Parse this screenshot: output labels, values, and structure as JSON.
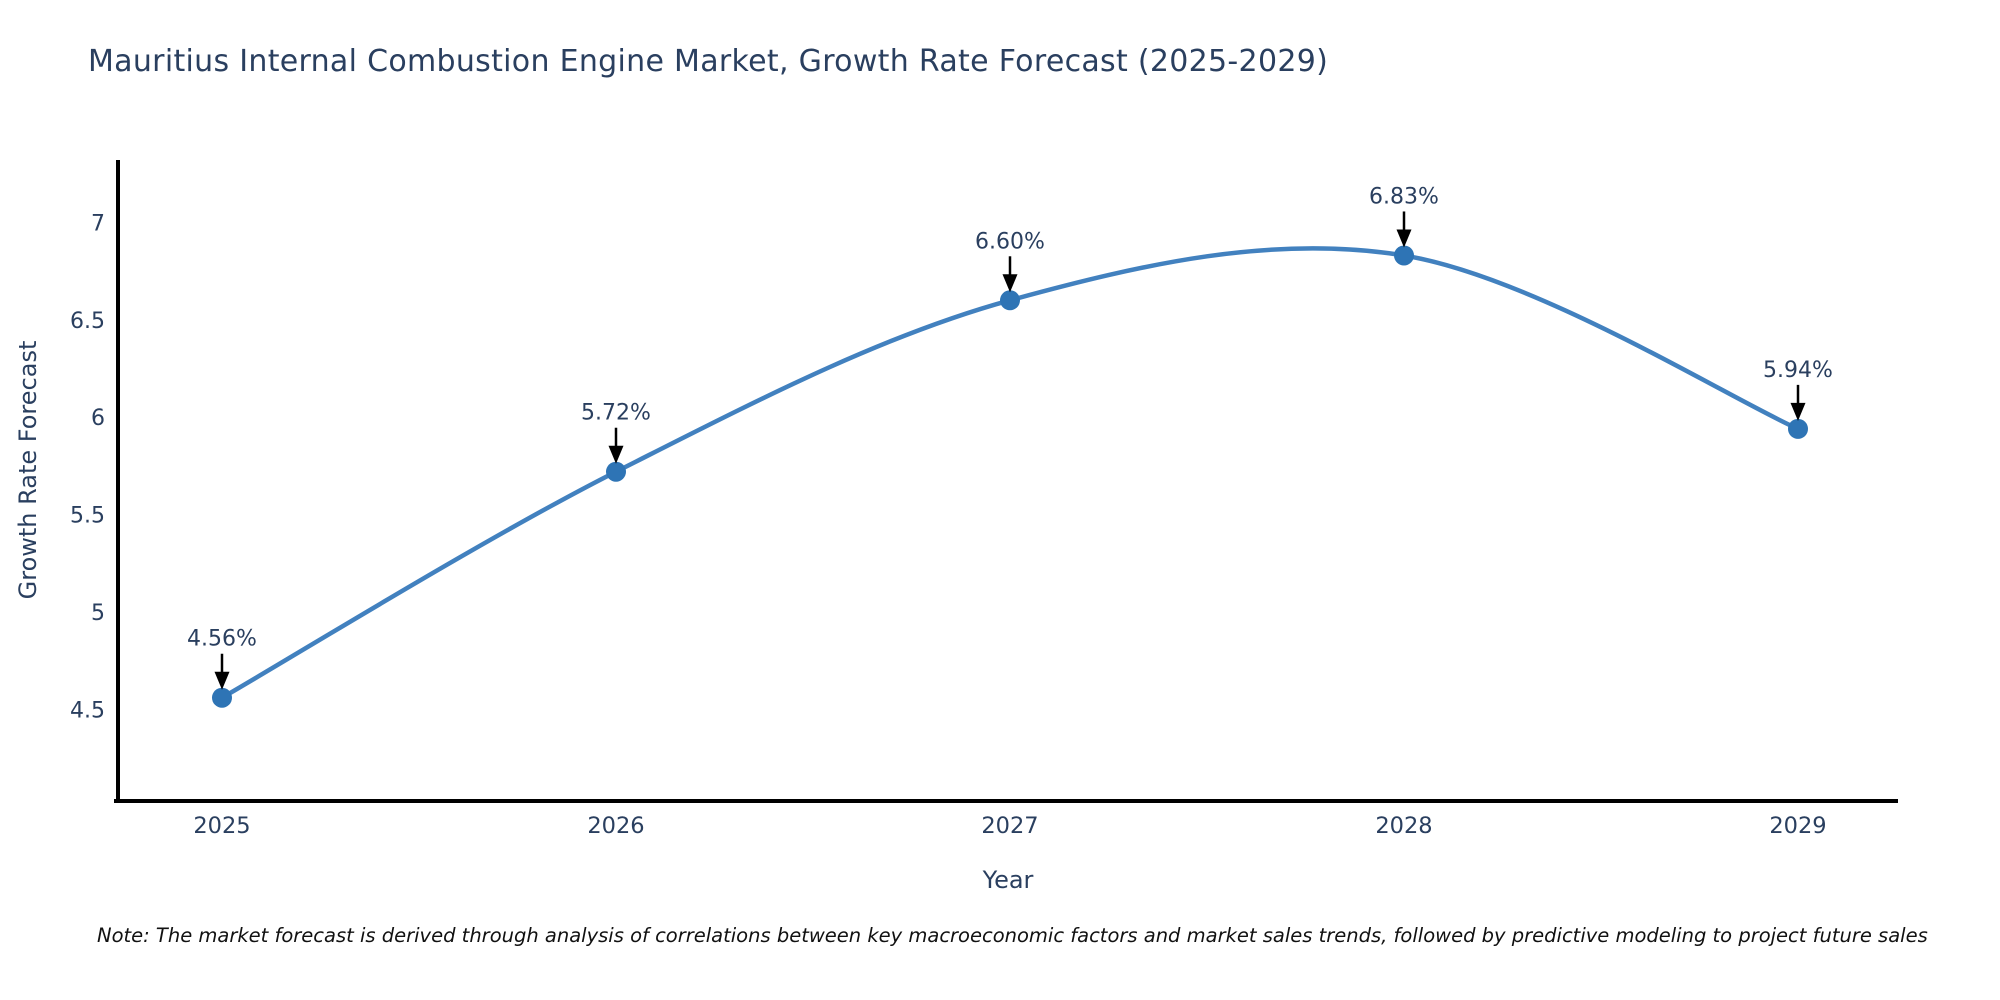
{
  "chart_data": {
    "type": "line",
    "title": "Mauritius Internal Combustion Engine Market, Growth Rate Forecast (2025-2029)",
    "xlabel": "Year",
    "ylabel": "Growth Rate Forecast",
    "categories": [
      "2025",
      "2026",
      "2027",
      "2028",
      "2029"
    ],
    "values": [
      4.56,
      5.72,
      6.6,
      6.83,
      5.94
    ],
    "point_labels": [
      "4.56%",
      "5.72%",
      "6.60%",
      "6.83%",
      "5.94%"
    ],
    "series_name": "Growth Rate Forecast",
    "yticks": [
      4.5,
      5,
      5.5,
      6,
      6.5,
      7
    ],
    "ytick_labels": [
      "4.5",
      "5",
      "5.5",
      "6",
      "6.5",
      "7"
    ],
    "ylim": [
      4.03,
      7.32
    ],
    "line_shape": "spline",
    "grid": false,
    "legend_position": "none",
    "annotation_style": "value labels above points with downward black arrows",
    "colors": {
      "line": "#4281bf",
      "marker": "#2e74b5",
      "text": "#2a3f5f",
      "axis": "#000000",
      "arrow": "#000000"
    },
    "note": "Note: The market forecast is derived through analysis of correlations between key macroeconomic factors and market sales trends, followed by predictive modeling to project future sales"
  }
}
